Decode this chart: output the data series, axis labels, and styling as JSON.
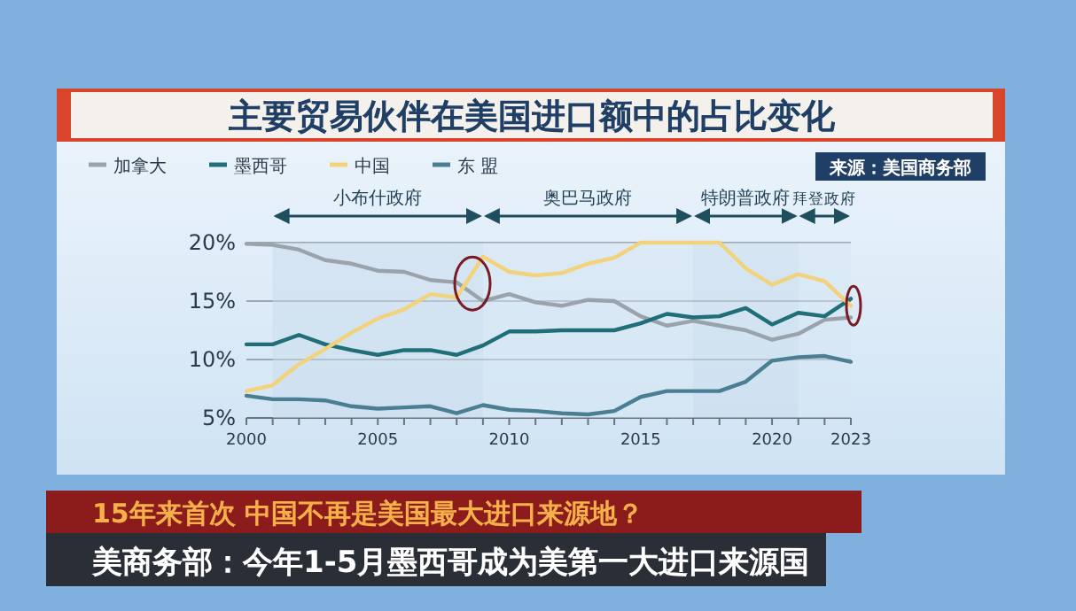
{
  "chart_data": {
    "type": "line",
    "title": "主要贸易伙伴在美国进口额中的占比变化",
    "x": [
      2000,
      2001,
      2002,
      2003,
      2004,
      2005,
      2006,
      2007,
      2008,
      2009,
      2010,
      2011,
      2012,
      2013,
      2014,
      2015,
      2016,
      2017,
      2018,
      2019,
      2020,
      2021,
      2022,
      2023
    ],
    "series": [
      {
        "name": "加拿大",
        "color": "#9aa3ab",
        "values": [
          19.9,
          19.8,
          19.4,
          18.5,
          18.2,
          17.6,
          17.5,
          16.8,
          16.6,
          15.0,
          15.6,
          14.9,
          14.6,
          15.1,
          15.0,
          13.7,
          12.9,
          13.3,
          12.9,
          12.5,
          11.7,
          12.2,
          13.4,
          13.6
        ]
      },
      {
        "name": "墨西哥",
        "color": "#1f6e78",
        "values": [
          11.3,
          11.3,
          12.1,
          11.3,
          10.8,
          10.4,
          10.8,
          10.8,
          10.4,
          11.2,
          12.4,
          12.4,
          12.5,
          12.5,
          12.5,
          13.1,
          13.9,
          13.6,
          13.7,
          14.4,
          13.0,
          14.0,
          13.7,
          15.2
        ]
      },
      {
        "name": "中国",
        "color": "#f2d27a",
        "values": [
          7.3,
          7.8,
          9.6,
          10.9,
          12.3,
          13.5,
          14.3,
          15.6,
          15.3,
          18.8,
          17.5,
          17.2,
          17.4,
          18.2,
          18.7,
          20.0,
          20.0,
          20.0,
          20.0,
          17.8,
          16.4,
          17.3,
          16.7,
          14.6
        ]
      },
      {
        "name": "东 盟",
        "color": "#4a7f93",
        "values": [
          6.9,
          6.6,
          6.6,
          6.5,
          6.0,
          5.8,
          5.9,
          6.0,
          5.4,
          6.1,
          5.7,
          5.6,
          5.4,
          5.3,
          5.6,
          6.8,
          7.3,
          7.3,
          7.3,
          8.1,
          9.9,
          10.2,
          10.3,
          9.8
        ]
      }
    ],
    "xlim": [
      2000,
      2023
    ],
    "xticks": [
      2000,
      {
        "value": 2001,
        "label": null
      },
      {
        "value": 2002,
        "label": null
      },
      {
        "value": 2003,
        "label": null
      },
      {
        "value": 2004,
        "label": null
      },
      2005,
      {
        "value": 2006,
        "label": null
      },
      {
        "value": 2007,
        "label": null
      },
      {
        "value": 2008,
        "label": null
      },
      {
        "value": 2009,
        "label": null
      },
      2010,
      {
        "value": 2011,
        "label": null
      },
      {
        "value": 2012,
        "label": null
      },
      {
        "value": 2013,
        "label": null
      },
      {
        "value": 2014,
        "label": null
      },
      2015,
      {
        "value": 2016,
        "label": null
      },
      {
        "value": 2017,
        "label": null
      },
      {
        "value": 2018,
        "label": null
      },
      {
        "value": 2019,
        "label": null
      },
      2020,
      {
        "value": 2021,
        "label": null
      },
      {
        "value": 2022,
        "label": null
      },
      2023
    ],
    "ylim": [
      5,
      20
    ],
    "yticks": [
      {
        "value": 5,
        "label": "5%"
      },
      {
        "value": 10,
        "label": "10%"
      },
      {
        "value": 15,
        "label": "15%"
      },
      {
        "value": 20,
        "label": "20%"
      }
    ],
    "grid": "y",
    "legend": "top left",
    "bands": [
      {
        "axis": "x",
        "from": 2001,
        "to": 2009,
        "label": "小布什政府",
        "color": "#c9dcec"
      },
      {
        "axis": "x",
        "from": 2009,
        "to": 2017,
        "label": "奥巴马政府",
        "color": "#d6e6f3"
      },
      {
        "axis": "x",
        "from": 2017,
        "to": 2021,
        "label": "特朗普政府",
        "color": "#c9dcec"
      },
      {
        "axis": "x",
        "from": 2021,
        "to": 2023,
        "label": "拜登政府",
        "color": "#d6e6f3"
      }
    ],
    "annotations": [
      "来源：美国商务部",
      "15年来首次  中国不再是美国最大进口来源地？",
      "美商务部：今年1-5月墨西哥成为美第一大进口来源国"
    ]
  }
}
